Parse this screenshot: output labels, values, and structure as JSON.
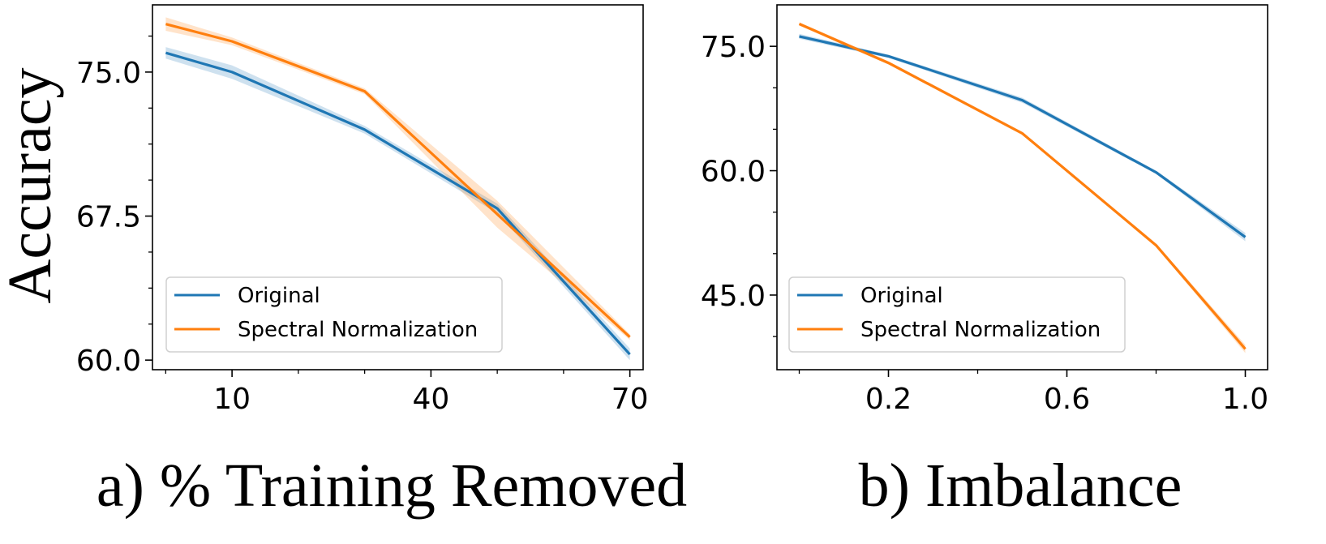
{
  "shared_ylabel": "Accuracy",
  "colors": {
    "Original": "#1f77b4",
    "Spectral Normalization": "#ff7f0e"
  },
  "chart_data": [
    {
      "type": "line",
      "caption": "a) % Training Removed",
      "xlabel": "",
      "ylabel": "Accuracy",
      "xlim": [
        -2,
        72
      ],
      "ylim": [
        59.5,
        78.5
      ],
      "xticks_major": [
        10,
        40,
        70
      ],
      "xticks_major_labels": [
        "10",
        "40",
        "70"
      ],
      "xticks_minor": [
        0,
        20,
        30,
        50,
        60
      ],
      "yticks_major": [
        60.0,
        67.5,
        75.0
      ],
      "yticks_major_labels": [
        "60.0",
        "67.5",
        "75.0"
      ],
      "yticks_minor": [
        61.875,
        63.75,
        65.625,
        69.375,
        71.25,
        73.125,
        76.875
      ],
      "grid": false,
      "legend": "lower-left",
      "x": [
        0,
        10,
        30,
        50,
        70
      ],
      "series": [
        {
          "name": "Original",
          "values": [
            76.0,
            75.0,
            72.0,
            67.9,
            60.3
          ],
          "band": [
            0.3,
            0.35,
            0.2,
            0.25,
            0.3
          ]
        },
        {
          "name": "Spectral Normalization",
          "values": [
            77.5,
            76.6,
            74.0,
            67.6,
            61.2
          ],
          "band": [
            0.35,
            0.2,
            0.15,
            0.7,
            0.15
          ]
        }
      ]
    },
    {
      "type": "line",
      "caption": "b) Imbalance",
      "xlabel": "",
      "ylabel": "",
      "xlim": [
        -0.05,
        1.05
      ],
      "ylim": [
        36,
        80
      ],
      "xticks_major": [
        0.2,
        0.6,
        1.0
      ],
      "xticks_major_labels": [
        "0.2",
        "0.6",
        "1.0"
      ],
      "xticks_minor": [
        0.0,
        0.4,
        0.8
      ],
      "yticks_major": [
        45.0,
        60.0,
        75.0
      ],
      "yticks_major_labels": [
        "45.0",
        "60.0",
        "75.0"
      ],
      "yticks_minor": [
        40.0,
        50.0,
        55.0,
        65.0,
        70.0
      ],
      "grid": false,
      "legend": "lower-left",
      "x": [
        0.0,
        0.2,
        0.5,
        0.8,
        1.0
      ],
      "series": [
        {
          "name": "Original",
          "values": [
            76.2,
            73.8,
            68.5,
            59.8,
            52.0
          ],
          "band": [
            0.3,
            0.2,
            0.3,
            0.2,
            0.5
          ]
        },
        {
          "name": "Spectral Normalization",
          "values": [
            77.7,
            73.0,
            64.5,
            51.0,
            38.5
          ],
          "band": [
            0.2,
            0.2,
            0.2,
            0.2,
            0.5
          ]
        }
      ]
    }
  ]
}
